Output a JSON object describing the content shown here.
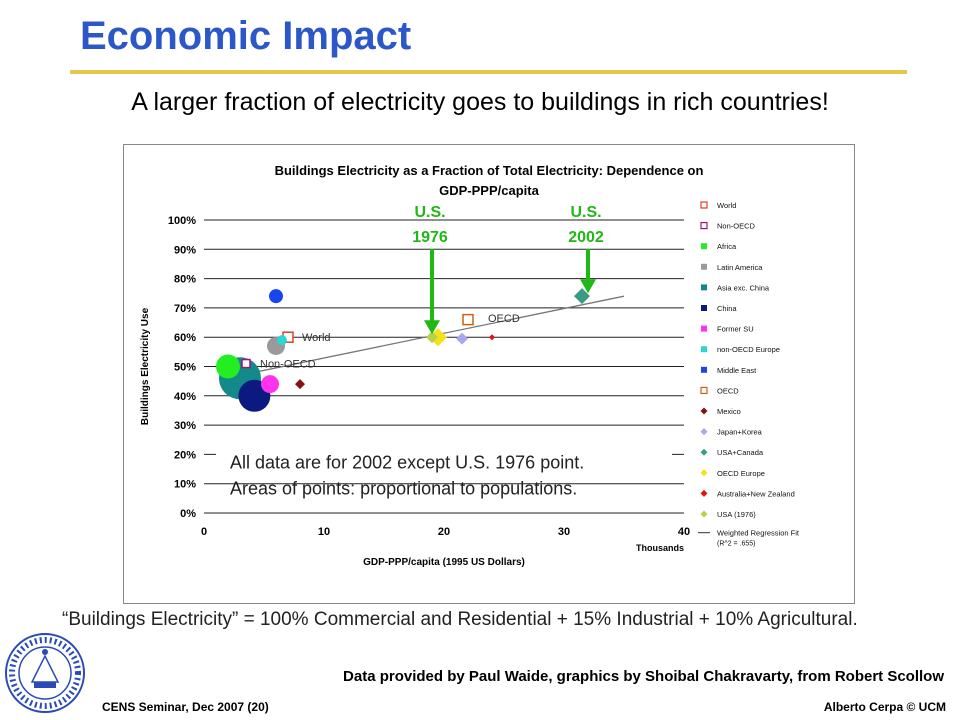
{
  "slide": {
    "title": "Economic Impact",
    "subtitle": "A larger fraction of electricity goes to buildings in rich countries!",
    "footnote": "“Buildings Electricity” = 100% Commercial and Residential + 15% Industrial + 10% Agricultural.",
    "credit": "Data provided by Paul Waide, graphics by Shoibal Chakravarty, from Robert Scollow",
    "footer_left": "CENS Seminar, Dec 2007 (20)",
    "footer_right": "Alberto Cerpa © UCM",
    "seal_text": "THE UNIVERSITY OF CALIFORNIA · MERCED",
    "colors": {
      "title": "#2b57c8",
      "rule": "#e6c84c",
      "arrow": "#1fb814"
    }
  },
  "chart_data": {
    "type": "scatter",
    "title": "Buildings Electricity as a Fraction of Total Electricity: Dependence on GDP-PPP/capita",
    "xlabel": "GDP-PPP/capita (1995 US Dollars)",
    "x_unit_label": "Thousands",
    "ylabel": "Buildings Electricity Use",
    "xlim": [
      0,
      40
    ],
    "ylim": [
      0,
      100
    ],
    "xticks": [
      "0",
      "10",
      "20",
      "30",
      "40"
    ],
    "yticks": [
      "0%",
      "10%",
      "20%",
      "30%",
      "40%",
      "50%",
      "60%",
      "70%",
      "80%",
      "90%",
      "100%"
    ],
    "grid": "horizontal",
    "legend_position": "right",
    "series": [
      {
        "name": "World",
        "color": "#e04020",
        "shape": "square-open",
        "x": 7,
        "y": 60,
        "r": 5
      },
      {
        "name": "Non-OECD",
        "color": "#a01080",
        "shape": "square-open",
        "x": 3.5,
        "y": 51,
        "r": 4
      },
      {
        "name": "Africa",
        "color": "#22ee22",
        "shape": "circle",
        "x": 2,
        "y": 50,
        "r": 12
      },
      {
        "name": "Latin America",
        "color": "#9a9a9a",
        "shape": "circle",
        "x": 6,
        "y": 57,
        "r": 9
      },
      {
        "name": "Asia exc. China",
        "color": "#138a8a",
        "shape": "circle",
        "x": 3,
        "y": 46,
        "r": 21
      },
      {
        "name": "China",
        "color": "#0a1a80",
        "shape": "circle",
        "x": 4.2,
        "y": 40,
        "r": 16
      },
      {
        "name": "Former SU",
        "color": "#ff33ee",
        "shape": "circle",
        "x": 5.5,
        "y": 44,
        "r": 9
      },
      {
        "name": "non-OECD Europe",
        "color": "#2ad7d7",
        "shape": "circle",
        "x": 6.5,
        "y": 59,
        "r": 5
      },
      {
        "name": "Middle East",
        "color": "#1a45ee",
        "shape": "circle",
        "x": 6,
        "y": 74,
        "r": 7
      },
      {
        "name": "OECD",
        "color": "#d06010",
        "shape": "square-open",
        "x": 22,
        "y": 66,
        "r": 5
      },
      {
        "name": "Mexico",
        "color": "#8a1010",
        "shape": "diamond",
        "x": 8,
        "y": 44,
        "r": 5
      },
      {
        "name": "Japan+Korea",
        "color": "#a7a7ee",
        "shape": "diamond",
        "x": 21.5,
        "y": 59.5,
        "r": 6
      },
      {
        "name": "USA+Canada",
        "color": "#3a9a85",
        "shape": "diamond",
        "x": 31.5,
        "y": 74,
        "r": 8
      },
      {
        "name": "OECD Europe",
        "color": "#f5e11a",
        "shape": "diamond",
        "x": 19.5,
        "y": 60,
        "r": 9
      },
      {
        "name": "Australia+New Zealand",
        "color": "#e81010",
        "shape": "diamond",
        "x": 24,
        "y": 60,
        "r": 3
      },
      {
        "name": "USA (1976)",
        "color": "#b8d14a",
        "shape": "diamond",
        "x": 19,
        "y": 60,
        "r": 6
      }
    ],
    "regression": {
      "name": "Weighted Regression Fit",
      "note": "(R^2 = .655)",
      "x": [
        3,
        35
      ],
      "y": [
        47,
        74
      ]
    },
    "point_labels": [
      {
        "text": "World",
        "x": 7.5,
        "y": 60
      },
      {
        "text": "Non-OECD",
        "x": 4,
        "y": 51
      },
      {
        "text": "OECD",
        "x": 23,
        "y": 66.5
      }
    ],
    "arrows": [
      {
        "label": [
          "U.S.",
          "1976"
        ],
        "x": 19,
        "y_from": 95,
        "y_to": 61
      },
      {
        "label": [
          "U.S.",
          "2002"
        ],
        "x": 32,
        "y_from": 92,
        "y_to": 75
      }
    ],
    "annotation_lines": [
      "All data are for 2002 except U.S. 1976 point.",
      "Areas of points: proportional to populations."
    ]
  }
}
